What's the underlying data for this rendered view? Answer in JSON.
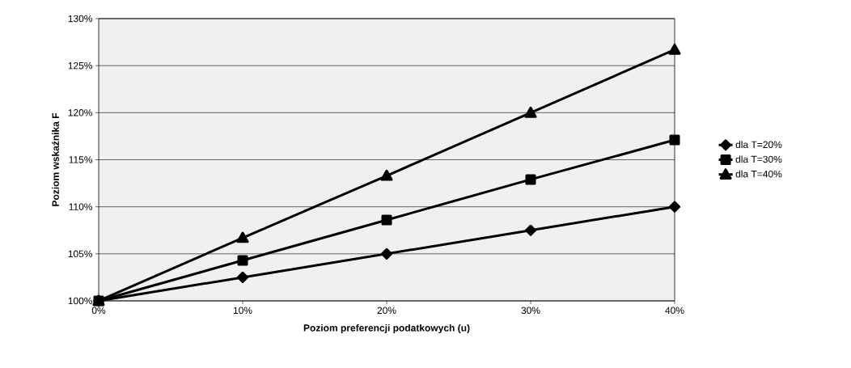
{
  "chart_data": {
    "type": "line",
    "xlabel": "Poziom preferencji podatkowych (u)",
    "ylabel": "Poziom wskaźnika F",
    "categories": [
      "0%",
      "10%",
      "20%",
      "30%",
      "40%"
    ],
    "series": [
      {
        "name": "dla T=20%",
        "color": "#000000",
        "marker": "diamond",
        "values": [
          100,
          102.5,
          105,
          107.5,
          110
        ]
      },
      {
        "name": "dla T=30%",
        "color": "#000000",
        "marker": "square",
        "values": [
          100,
          104.3,
          108.6,
          112.9,
          117.1
        ]
      },
      {
        "name": "dla T=40%",
        "color": "#000000",
        "marker": "triangle",
        "values": [
          100,
          106.7,
          113.3,
          120,
          126.7
        ]
      }
    ],
    "ylim": [
      100,
      130
    ],
    "yticks": [
      {
        "value": 100,
        "label": "100%"
      },
      {
        "value": 105,
        "label": "105%"
      },
      {
        "value": 110,
        "label": "110%"
      },
      {
        "value": 115,
        "label": "115%"
      },
      {
        "value": 120,
        "label": "120%"
      },
      {
        "value": 125,
        "label": "125%"
      },
      {
        "value": 130,
        "label": "130%"
      }
    ],
    "grid": "y",
    "legend": "right",
    "line_style": "solid"
  }
}
